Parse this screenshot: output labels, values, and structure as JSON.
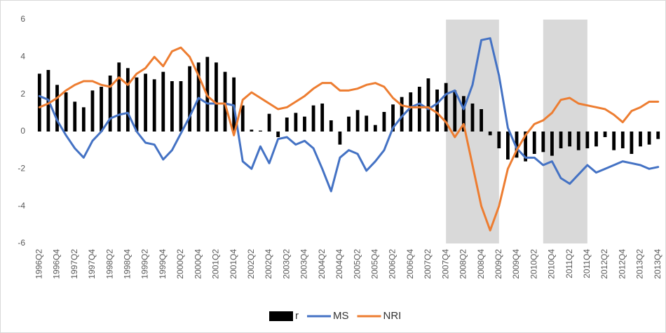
{
  "chart_data": {
    "type": "combo",
    "categories": [
      "1996Q2",
      null,
      "1996Q4",
      null,
      "1997Q2",
      null,
      "1997Q4",
      null,
      "1998Q2",
      null,
      "1998Q4",
      null,
      "1999Q2",
      null,
      "1999Q4",
      null,
      "2000Q2",
      null,
      "2000Q4",
      null,
      "2001Q2",
      null,
      "2001Q4",
      null,
      "2002Q2",
      null,
      "2002Q4",
      null,
      "2003Q2",
      null,
      "2003Q4",
      null,
      "2004Q2",
      null,
      "2004Q4",
      null,
      "2005Q2",
      null,
      "2005Q4",
      null,
      "2006Q2",
      null,
      "2006Q4",
      null,
      "2007Q2",
      null,
      "2007Q4",
      null,
      "2008Q2",
      null,
      "2008Q4",
      null,
      "2009Q2",
      null,
      "2009Q4",
      null,
      "2010Q2",
      null,
      "2010Q4",
      null,
      "2011Q2",
      null,
      "2011Q4",
      null,
      "2012Q2",
      null,
      "2012Q4",
      null,
      "2013Q2",
      null,
      "2013Q4"
    ],
    "series": [
      {
        "name": "r",
        "type": "bar",
        "color": "#000000",
        "values": [
          3.1,
          3.3,
          2.5,
          2.1,
          1.6,
          1.3,
          2.2,
          2.4,
          3.0,
          3.7,
          3.4,
          2.9,
          3.1,
          2.8,
          3.2,
          2.7,
          2.7,
          3.5,
          3.7,
          4.0,
          3.7,
          3.2,
          2.9,
          1.4,
          0.1,
          0.05,
          0.95,
          -0.3,
          0.75,
          1.0,
          0.8,
          1.4,
          1.5,
          0.6,
          -0.7,
          0.8,
          1.15,
          0.85,
          0.35,
          1.05,
          1.45,
          1.85,
          2.1,
          2.4,
          2.85,
          2.25,
          2.6,
          2.2,
          1.9,
          1.5,
          1.2,
          -0.2,
          -0.9,
          -1.5,
          -1.4,
          -1.6,
          -1.2,
          -1.1,
          -1.3,
          -0.9,
          -0.8,
          -1.0,
          -0.9,
          -0.8,
          -0.3,
          -1.0,
          -0.9,
          -1.2,
          -0.8,
          -0.7,
          -0.4
        ]
      },
      {
        "name": "MS",
        "type": "line",
        "color": "#4472c4",
        "values": [
          1.9,
          1.7,
          0.6,
          -0.2,
          -0.9,
          -1.4,
          -0.5,
          0.0,
          0.7,
          0.9,
          1.0,
          0.0,
          -0.6,
          -0.7,
          -1.5,
          -1.0,
          -0.1,
          0.8,
          1.8,
          1.5,
          1.5,
          1.5,
          1.4,
          -1.6,
          -2.0,
          -0.8,
          -1.7,
          -0.4,
          -0.3,
          -0.7,
          -0.5,
          -0.9,
          -2.0,
          -3.2,
          -1.4,
          -1.0,
          -1.2,
          -2.1,
          -1.6,
          -1.0,
          0.2,
          0.8,
          1.3,
          1.5,
          1.2,
          1.5,
          2.0,
          2.2,
          1.2,
          2.5,
          4.9,
          5.0,
          3.0,
          0.2,
          -0.9,
          -1.4,
          -1.4,
          -1.8,
          -1.6,
          -2.5,
          -2.8,
          -2.3,
          -1.8,
          -2.2,
          -2.0,
          -1.8,
          -1.6,
          -1.7,
          -1.8,
          -2.0,
          -1.9
        ]
      },
      {
        "name": "NRI",
        "type": "line",
        "color": "#ed7d31",
        "values": [
          1.3,
          1.5,
          1.8,
          2.2,
          2.5,
          2.7,
          2.7,
          2.5,
          2.4,
          2.9,
          2.5,
          3.1,
          3.4,
          4.0,
          3.5,
          4.3,
          4.5,
          4.0,
          3.0,
          1.9,
          1.5,
          1.5,
          -0.2,
          1.7,
          2.1,
          1.8,
          1.5,
          1.2,
          1.3,
          1.6,
          1.9,
          2.3,
          2.6,
          2.6,
          2.2,
          2.2,
          2.3,
          2.5,
          2.6,
          2.4,
          1.8,
          1.4,
          1.3,
          1.3,
          1.3,
          1.0,
          0.5,
          -0.3,
          0.4,
          -1.8,
          -4.0,
          -5.3,
          -4.0,
          -2.0,
          -1.0,
          -0.2,
          0.4,
          0.6,
          1.0,
          1.7,
          1.8,
          1.5,
          1.4,
          1.3,
          1.2,
          0.9,
          0.5,
          1.1,
          1.3,
          1.6,
          1.6
        ]
      }
    ],
    "shaded_periods": [
      {
        "start": 46,
        "end": 52
      },
      {
        "start": 57,
        "end": 62
      }
    ],
    "shade_color": "#d9d9d9",
    "ylim": [
      -6,
      6
    ],
    "yticks": [
      -6,
      -4,
      -2,
      0,
      2,
      4,
      6
    ],
    "grid": false,
    "legend": "bottom"
  }
}
